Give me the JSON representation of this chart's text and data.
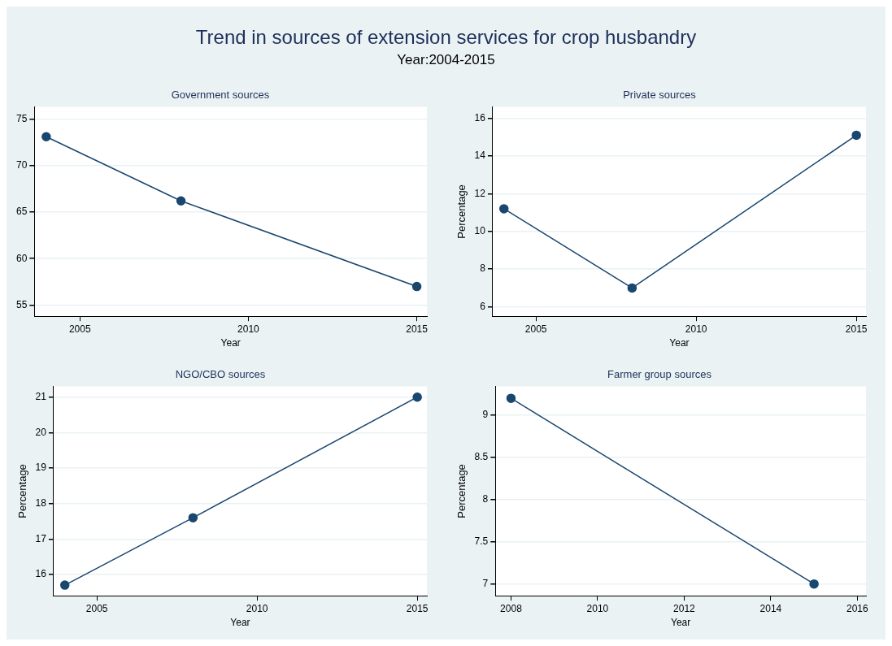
{
  "chart_data": [
    {
      "type": "line",
      "title": "Trend in sources of extension services for crop husbandry",
      "subtitle": "Year:2004-2015",
      "annotations": [
        "Government sources"
      ],
      "xlabel": "Year",
      "x": [
        2004,
        2008,
        2015
      ],
      "xlim": [
        2003.65,
        2015.3
      ],
      "xticks": [
        2005,
        2010,
        2015
      ],
      "ylim": [
        53.8,
        76.3
      ],
      "yticks": [
        55,
        60,
        65,
        70,
        75
      ],
      "series": [
        {
          "color": "#1a476f",
          "values": [
            73.1,
            66.2,
            57.0
          ]
        }
      ],
      "marker": "circle",
      "grid": "y",
      "legend": false
    },
    {
      "type": "line",
      "title": "Private sources",
      "xlabel": "Year",
      "ylabel": "Percentage",
      "x": [
        2004,
        2008,
        2015
      ],
      "xlim": [
        2003.65,
        2015.3
      ],
      "xticks": [
        2005,
        2010,
        2015
      ],
      "ylim": [
        5.5,
        16.6
      ],
      "yticks": [
        6,
        8,
        10,
        12,
        14,
        16
      ],
      "series": [
        {
          "color": "#1a476f",
          "values": [
            11.2,
            7.0,
            15.1
          ]
        }
      ],
      "marker": "circle",
      "grid": "y",
      "legend": false
    },
    {
      "type": "line",
      "title": "NGO/CBO sources",
      "xlabel": "Year",
      "ylabel": "Percentage",
      "x": [
        2004,
        2008,
        2015
      ],
      "xlim": [
        2003.65,
        2015.3
      ],
      "xticks": [
        2005,
        2010,
        2015
      ],
      "ylim": [
        15.4,
        21.3
      ],
      "yticks": [
        16,
        17,
        18,
        19,
        20,
        21
      ],
      "series": [
        {
          "color": "#1a476f",
          "values": [
            15.7,
            17.6,
            21.0
          ]
        }
      ],
      "marker": "circle",
      "grid": "y",
      "legend": false
    },
    {
      "type": "line",
      "title": "Farmer group sources",
      "xlabel": "Year",
      "ylabel": "Percentage",
      "x": [
        2008,
        2015
      ],
      "xlim": [
        2007.64,
        2016.2
      ],
      "xticks": [
        2008,
        2010,
        2012,
        2014,
        2016
      ],
      "ylim": [
        6.86,
        9.34
      ],
      "yticks": [
        7,
        7.5,
        8,
        8.5,
        9
      ],
      "series": [
        {
          "color": "#1a476f",
          "values": [
            9.2,
            7.0
          ]
        }
      ],
      "marker": "circle",
      "grid": "y",
      "legend": false
    }
  ]
}
